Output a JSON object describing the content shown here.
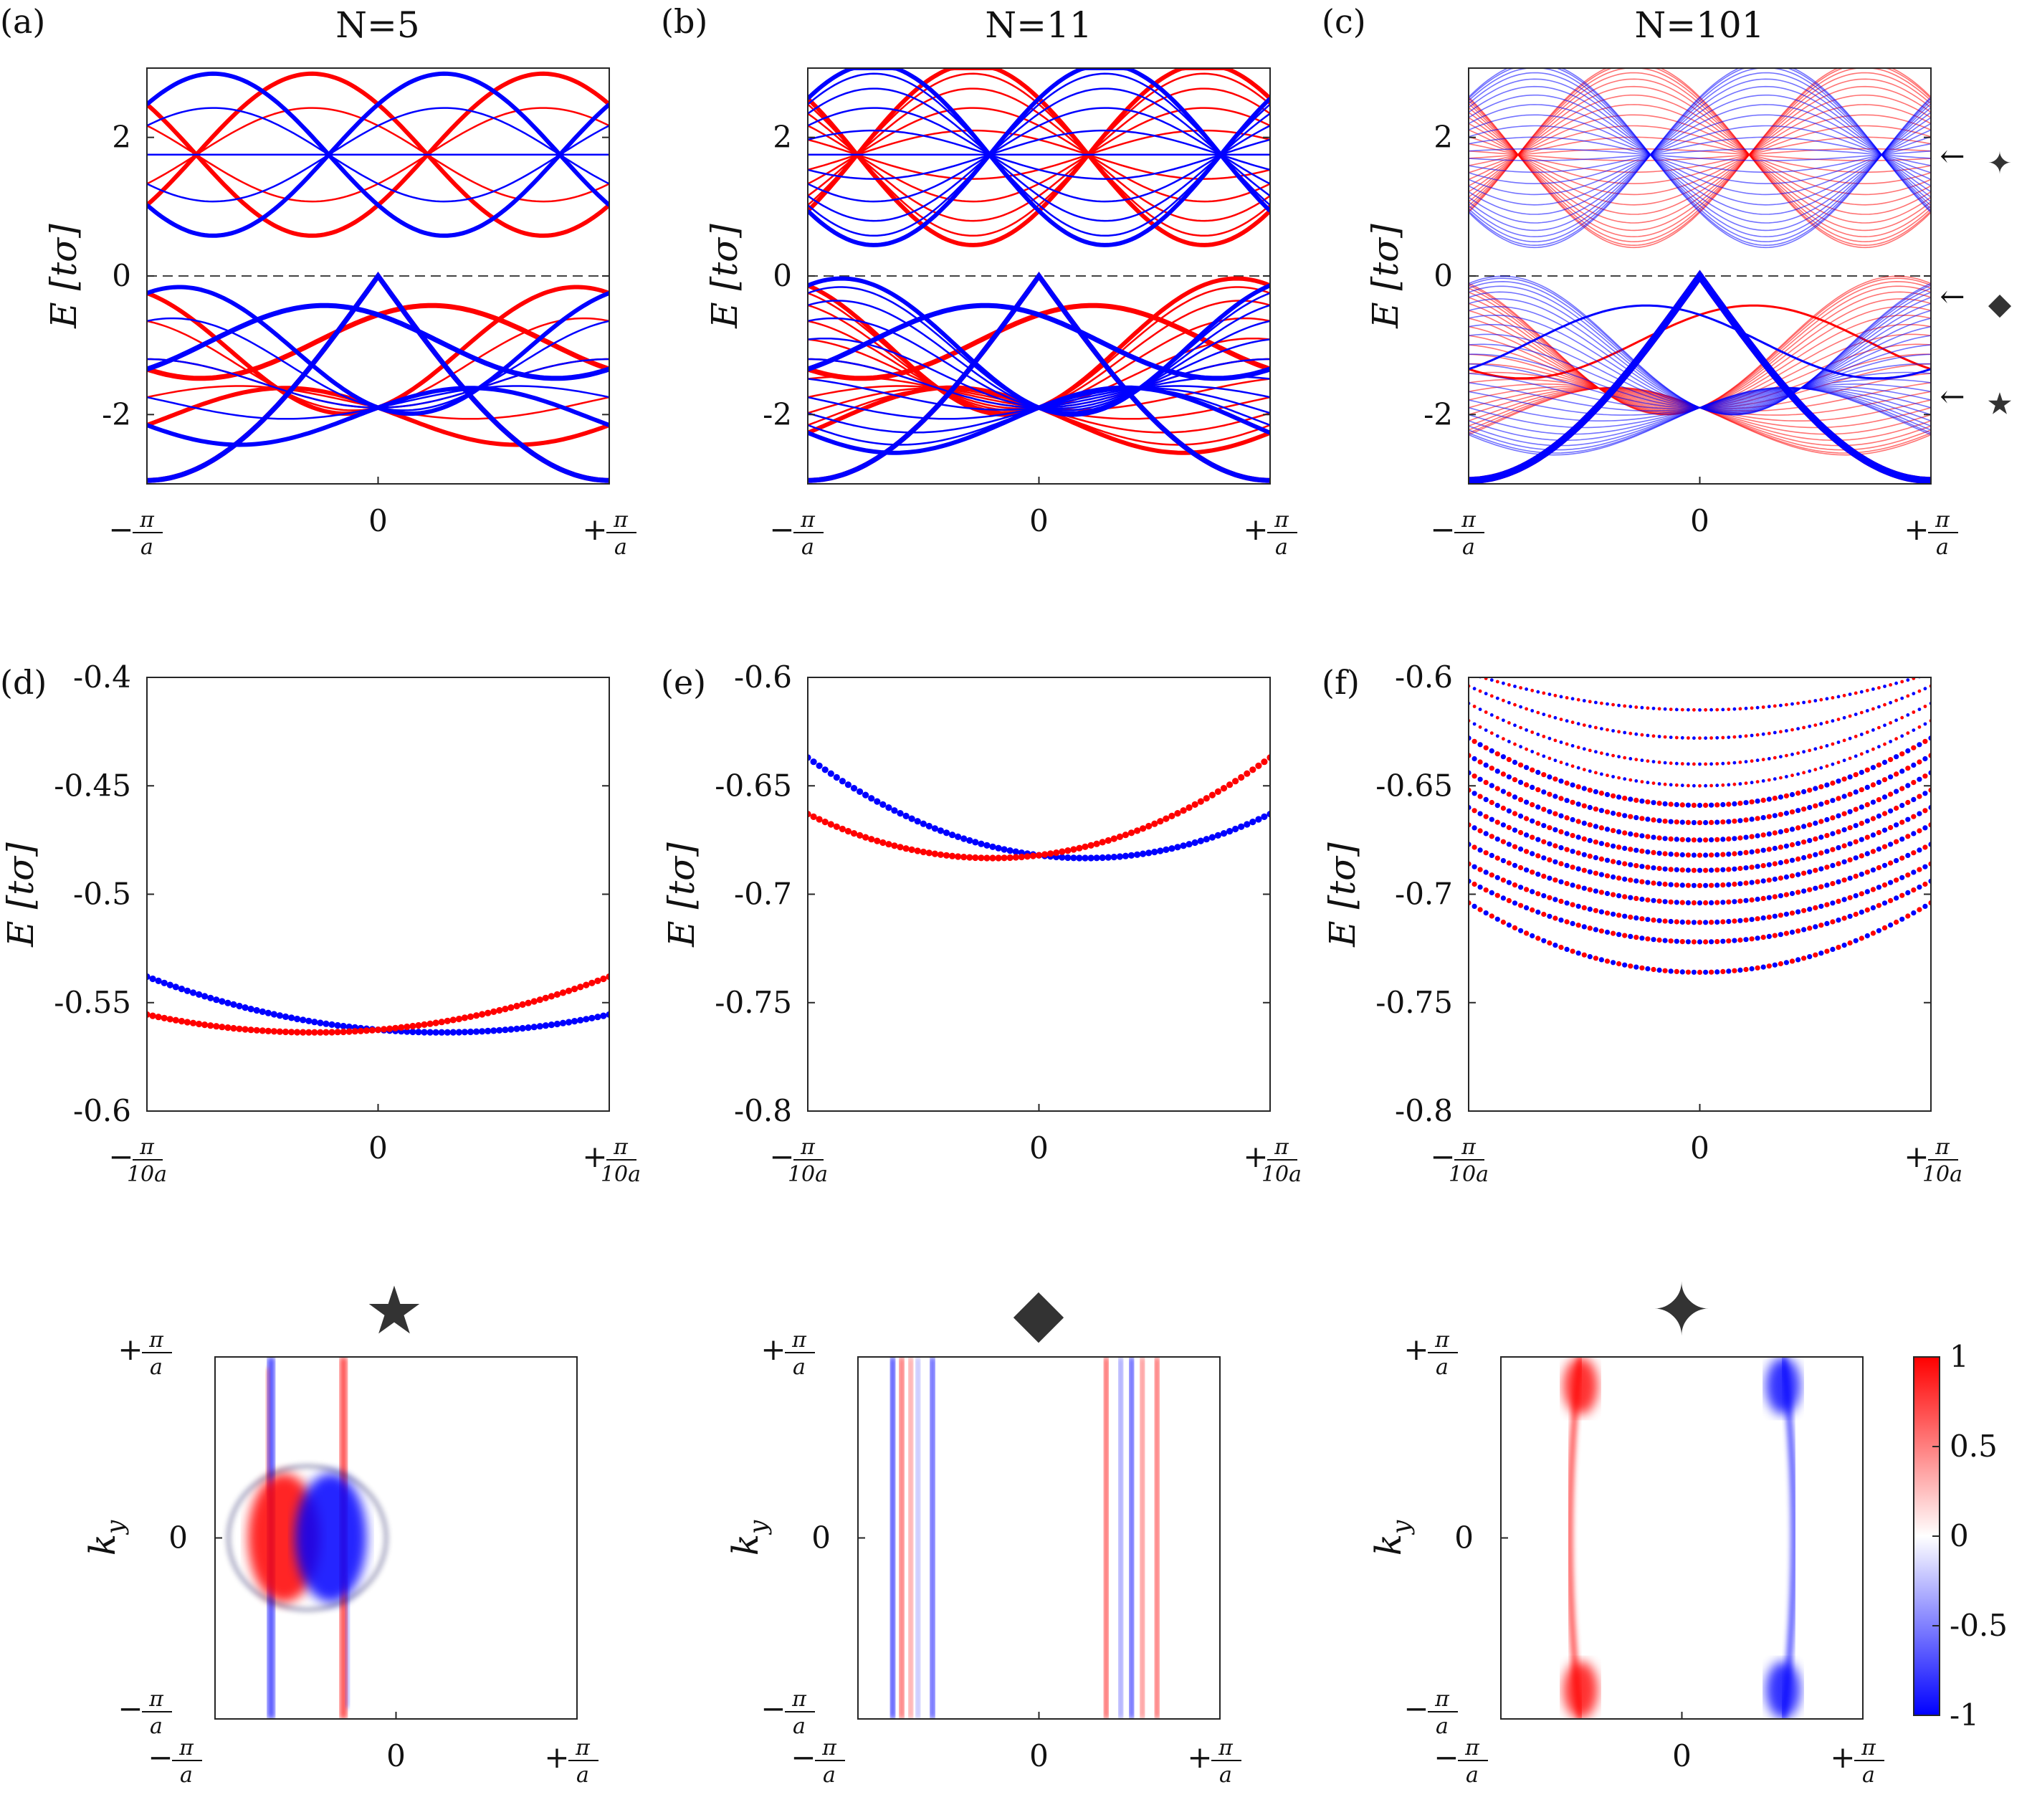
{
  "colors": {
    "red": "#ff0000",
    "blue": "#0000ff",
    "marker": "#333333",
    "axis": "#262626"
  },
  "markers": {
    "star": "★",
    "diamond": "◆",
    "sparkle": "✦",
    "arrow": "←"
  },
  "labels": {
    "k_left": "−",
    "k_right": "+",
    "pi": "π",
    "a": "a",
    "ten_a": "10a",
    "zero": "0",
    "ky": "k",
    "ky_sub": "y",
    "energy": "E [tσ]"
  },
  "chart_data": [
    {
      "id": "a",
      "type": "line",
      "panel_label": "(a)",
      "title": "N=5",
      "ylabel": "E [tσ]",
      "xlim": [
        "−π/a",
        "+π/a"
      ],
      "ylim": [
        -3,
        3
      ],
      "yticks": [
        "2",
        "0",
        "-2"
      ],
      "xticks": [
        "−π/a",
        "0",
        "+π/a"
      ],
      "N": 5,
      "reference_line": 0,
      "series_count": 10
    },
    {
      "id": "b",
      "type": "line",
      "panel_label": "(b)",
      "title": "N=11",
      "ylabel": "E [tσ]",
      "xlim": [
        "−π/a",
        "+π/a"
      ],
      "ylim": [
        -3,
        3
      ],
      "yticks": [
        "2",
        "0",
        "-2"
      ],
      "xticks": [
        "−π/a",
        "0",
        "+π/a"
      ],
      "N": 11,
      "reference_line": 0,
      "series_count": 22
    },
    {
      "id": "c",
      "type": "line",
      "panel_label": "(c)",
      "title": "N=101",
      "ylabel": "E [tσ]",
      "xlim": [
        "−π/a",
        "+π/a"
      ],
      "ylim": [
        -3,
        3
      ],
      "yticks": [
        "2",
        "0",
        "-2"
      ],
      "xticks": [
        "−π/a",
        "0",
        "+π/a"
      ],
      "N": 101,
      "reference_line": 0,
      "series_count": 202,
      "annotations": [
        {
          "marker": "sparkle",
          "E": 1.75
        },
        {
          "marker": "diamond",
          "E": -0.28
        },
        {
          "marker": "star",
          "E": -1.72
        }
      ]
    },
    {
      "id": "d",
      "type": "scatter",
      "panel_label": "(d)",
      "ylabel": "E [tσ]",
      "xlim": [
        "−π/10a",
        "+π/10a"
      ],
      "ylim": [
        -0.6,
        -0.4
      ],
      "yticks": [
        "-0.4",
        "-0.45",
        "-0.5",
        "-0.55",
        "-0.6"
      ],
      "ytick_values": [
        -0.4,
        -0.45,
        -0.5,
        -0.55,
        -0.6
      ],
      "xticks": [
        "−π/10a",
        "0",
        "+π/10a"
      ],
      "series": [
        {
          "color": "blue",
          "E_at_left": -0.538,
          "E_at_center": -0.5625,
          "E_at_right": -0.5555
        },
        {
          "color": "red",
          "E_at_left": -0.5555,
          "E_at_center": -0.5625,
          "E_at_right": -0.538
        }
      ]
    },
    {
      "id": "e",
      "type": "scatter",
      "panel_label": "(e)",
      "ylabel": "E [tσ]",
      "xlim": [
        "−π/10a",
        "+π/10a"
      ],
      "ylim": [
        -0.8,
        -0.6
      ],
      "yticks": [
        "-0.6",
        "-0.65",
        "-0.7",
        "-0.75",
        "-0.8"
      ],
      "ytick_values": [
        -0.6,
        -0.65,
        -0.7,
        -0.75,
        -0.8
      ],
      "xticks": [
        "−π/10a",
        "0",
        "+π/10a"
      ],
      "series": [
        {
          "color": "blue",
          "E_at_left": -0.637,
          "E_at_center": -0.682,
          "E_at_right": -0.663
        },
        {
          "color": "red",
          "E_at_left": -0.663,
          "E_at_center": -0.682,
          "E_at_right": -0.637
        }
      ]
    },
    {
      "id": "f",
      "type": "scatter",
      "panel_label": "(f)",
      "ylabel": "E [tσ]",
      "xlim": [
        "−π/10a",
        "+π/10a"
      ],
      "ylim": [
        -0.8,
        -0.6
      ],
      "yticks": [
        "-0.6",
        "-0.65",
        "-0.7",
        "-0.75",
        "-0.8"
      ],
      "ytick_values": [
        -0.6,
        -0.65,
        -0.7,
        -0.75,
        -0.8
      ],
      "xticks": [
        "−π/10a",
        "0",
        "+π/10a"
      ],
      "series": [
        {
          "color": "both",
          "E_at_center": -0.736,
          "E_at_edge": -0.704
        },
        {
          "color": "both",
          "E_at_center": -0.722,
          "E_at_edge": -0.694
        },
        {
          "color": "both",
          "E_at_center": -0.713,
          "E_at_edge": -0.686
        },
        {
          "color": "both",
          "E_at_center": -0.704,
          "E_at_edge": -0.677
        },
        {
          "color": "both",
          "E_at_center": -0.696,
          "E_at_edge": -0.668
        },
        {
          "color": "both",
          "E_at_center": -0.689,
          "E_at_edge": -0.66
        },
        {
          "color": "both",
          "E_at_center": -0.682,
          "E_at_edge": -0.652
        },
        {
          "color": "both",
          "E_at_center": -0.675,
          "E_at_edge": -0.644
        },
        {
          "color": "both",
          "E_at_center": -0.667,
          "E_at_edge": -0.636
        },
        {
          "color": "both",
          "E_at_center": -0.659,
          "E_at_edge": -0.628
        },
        {
          "color": "both",
          "E_at_center": -0.65,
          "E_at_edge": -0.62
        },
        {
          "color": "both",
          "E_at_center": -0.64,
          "E_at_edge": -0.612
        },
        {
          "color": "both",
          "E_at_center": -0.628,
          "E_at_edge": -0.604
        },
        {
          "color": "both",
          "E_at_center": -0.615,
          "E_at_edge": -0.598
        }
      ]
    },
    {
      "id": "g",
      "type": "heatmap",
      "marker": "star",
      "xlabel": "",
      "ylabel": "ky",
      "xticks": [
        "−π/a",
        "0",
        "+π/a"
      ],
      "yticks": [
        "−π/a",
        "0",
        "+π/a"
      ]
    },
    {
      "id": "h",
      "type": "heatmap",
      "marker": "diamond",
      "xlabel": "",
      "ylabel": "ky",
      "xticks": [
        "−π/a",
        "0",
        "+π/a"
      ],
      "yticks": [
        "−π/a",
        "0",
        "+π/a"
      ]
    },
    {
      "id": "i",
      "type": "heatmap",
      "marker": "sparkle",
      "xlabel": "",
      "ylabel": "ky",
      "xticks": [
        "−π/a",
        "0",
        "+π/a"
      ],
      "yticks": [
        "−π/a",
        "0",
        "+π/a"
      ],
      "colorbar": {
        "ticks": [
          "1",
          "0.5",
          "0",
          "-0.5",
          "-1"
        ],
        "tick_values": [
          1,
          0.5,
          0,
          -0.5,
          -1
        ],
        "range": [
          -1,
          1
        ],
        "colormap": "blue-white-red"
      }
    }
  ]
}
